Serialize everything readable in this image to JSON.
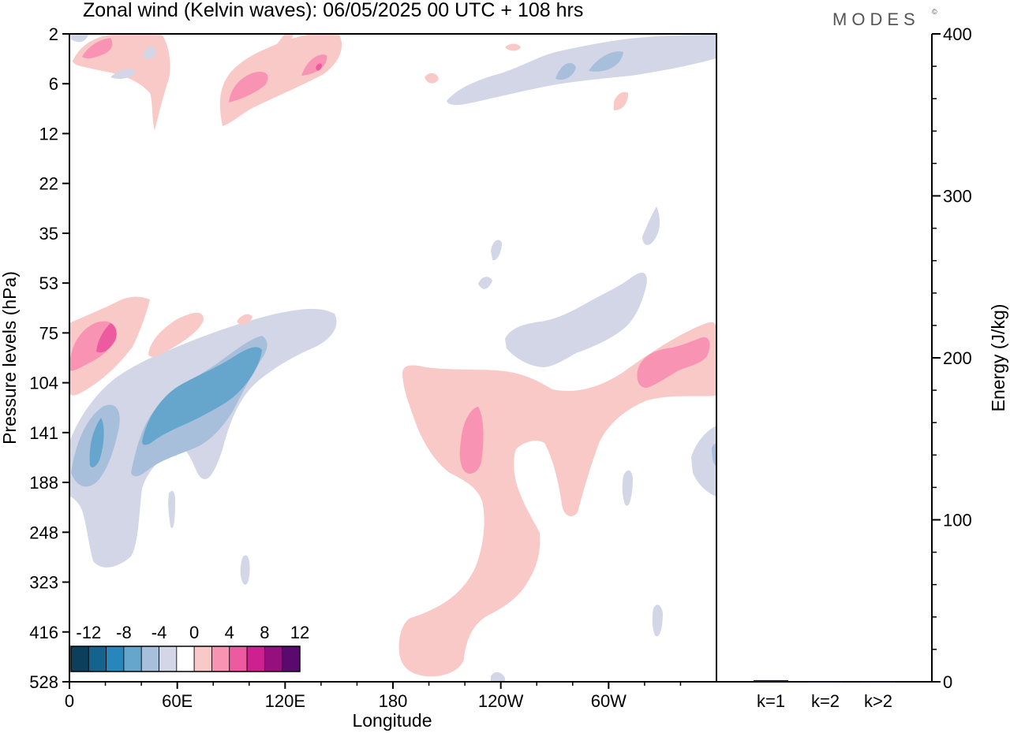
{
  "chart_data": [
    {
      "type": "heatmap",
      "title": "Zonal wind (Kelvin waves):  06/05/2025  00 UTC  + 108 hrs",
      "xlabel": "Longitude",
      "ylabel": "Pressure levels (hPa)",
      "x_ticks": [
        "0",
        "60E",
        "120E",
        "180",
        "120W",
        "60W"
      ],
      "x_tick_degrees": [
        0,
        60,
        120,
        180,
        240,
        300
      ],
      "xlim": [
        0,
        360
      ],
      "y_ticks": [
        "2",
        "6",
        "12",
        "22",
        "35",
        "53",
        "75",
        "104",
        "141",
        "188",
        "248",
        "323",
        "416",
        "528"
      ],
      "colorbar": {
        "labels": [
          "-12",
          "-8",
          "-4",
          "0",
          "4",
          "8",
          "12"
        ],
        "levels": [
          -16,
          -14,
          -12,
          -10,
          -8,
          -6,
          -4,
          -2,
          2,
          4,
          6,
          8,
          10,
          12,
          14
        ],
        "colors": [
          "#0c3f5c",
          "#14638f",
          "#2786bb",
          "#66a6cc",
          "#a7bfdb",
          "#d3d6e7",
          "#ffffff",
          "#f8c9c6",
          "#f893b4",
          "#ee5aa0",
          "#ce2090",
          "#95107e",
          "#5a0a6e"
        ]
      },
      "features": [
        {
          "sign": "negative",
          "level": -2,
          "lon": [
            0,
            150
          ],
          "pressure": [
            60,
            330
          ]
        },
        {
          "sign": "negative",
          "level": -6,
          "lon": [
            15,
            105
          ],
          "pressure": [
            80,
            190
          ]
        },
        {
          "sign": "negative",
          "level": -8,
          "lon": [
            55,
            95
          ],
          "pressure": [
            88,
            130
          ]
        },
        {
          "sign": "positive",
          "level": 2,
          "lon": [
            0,
            45
          ],
          "pressure": [
            50,
            100
          ]
        },
        {
          "sign": "positive",
          "level": 6,
          "lon": [
            10,
            22
          ],
          "pressure": [
            70,
            90
          ]
        },
        {
          "sign": "positive",
          "level": 2,
          "lon": [
            185,
            360
          ],
          "pressure": [
            75,
            520
          ]
        },
        {
          "sign": "positive",
          "level": 4,
          "lon": [
            220,
            232
          ],
          "pressure": [
            120,
            190
          ]
        },
        {
          "sign": "positive",
          "level": 4,
          "lon": [
            330,
            360
          ],
          "pressure": [
            85,
            108
          ]
        },
        {
          "sign": "negative",
          "level": -2,
          "lon": [
            245,
            315
          ],
          "pressure": [
            60,
            110
          ]
        },
        {
          "sign": "positive",
          "level": 2,
          "lon": [
            0,
            145
          ],
          "pressure": [
            2,
            11
          ]
        },
        {
          "sign": "positive",
          "level": 6,
          "lon": [
            90,
            145
          ],
          "pressure": [
            3,
            9
          ]
        },
        {
          "sign": "negative",
          "level": -2,
          "lon": [
            210,
            360
          ],
          "pressure": [
            2,
            9
          ]
        }
      ]
    },
    {
      "type": "bar",
      "ylabel": "Energy (J/kg)",
      "categories": [
        "k=1",
        "k=2",
        "k>2"
      ],
      "values": [
        1,
        0.3,
        0.3
      ],
      "ylim": [
        0,
        400
      ],
      "y_ticks": [
        "0",
        "100",
        "200",
        "300",
        "400"
      ]
    }
  ],
  "brand": "MODES",
  "brand_mark": "©"
}
